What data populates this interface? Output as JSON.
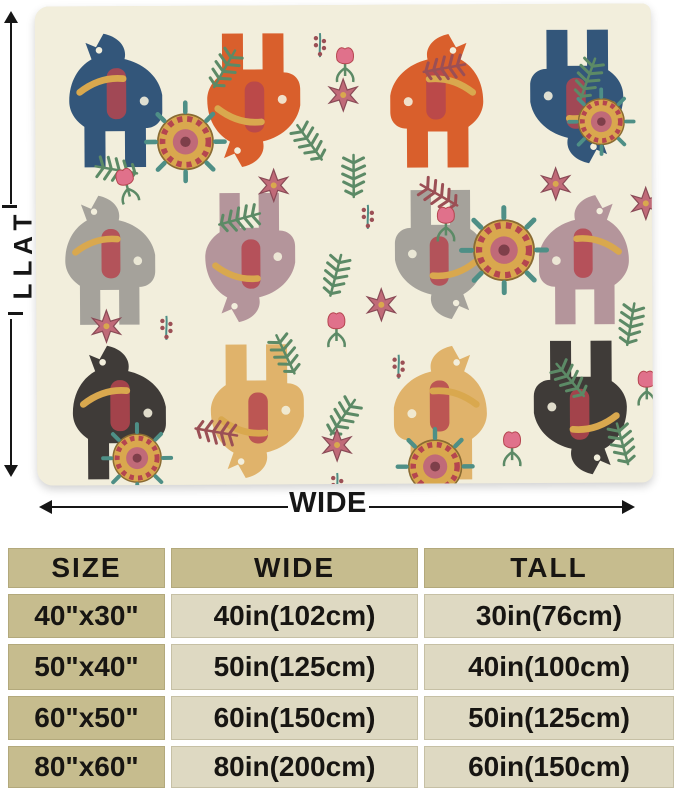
{
  "diagram": {
    "tall_label": "TALL",
    "wide_label": "WIDE"
  },
  "size_chart": {
    "headers": [
      "SIZE",
      "WIDE",
      "TALL"
    ],
    "rows": [
      {
        "size": "40\"x30\"",
        "wide": "40in(102cm)",
        "tall": "30in(76cm)"
      },
      {
        "size": "50\"x40\"",
        "wide": "50in(125cm)",
        "tall": "40in(100cm)"
      },
      {
        "size": "60\"x50\"",
        "wide": "60in(150cm)",
        "tall": "50in(125cm)"
      },
      {
        "size": "80\"x60\"",
        "wide": "80in(200cm)",
        "tall": "60in(150cm)"
      }
    ]
  },
  "colors": {
    "background": "#ffffff",
    "arrow": "#161616",
    "table_header_bg": "#c6bc8e",
    "table_cell_bg": "#ded9c2",
    "table_text": "#171512",
    "blanket_bg": "#f2eedc",
    "horse_navy": "#33567a",
    "horse_orange": "#d95f2c",
    "horse_gray": "#a5a29b",
    "horse_charcoal": "#3f3b38",
    "horse_mauve": "#b4959b",
    "horse_sand": "#e0b36b",
    "leaf_green": "#5c8a66",
    "leaf_maroon": "#9b4f55",
    "flower_pink": "#c06a78",
    "flower_gold": "#d9a84e",
    "accent_teal": "#4e8f86",
    "accent_red": "#b5454f"
  }
}
